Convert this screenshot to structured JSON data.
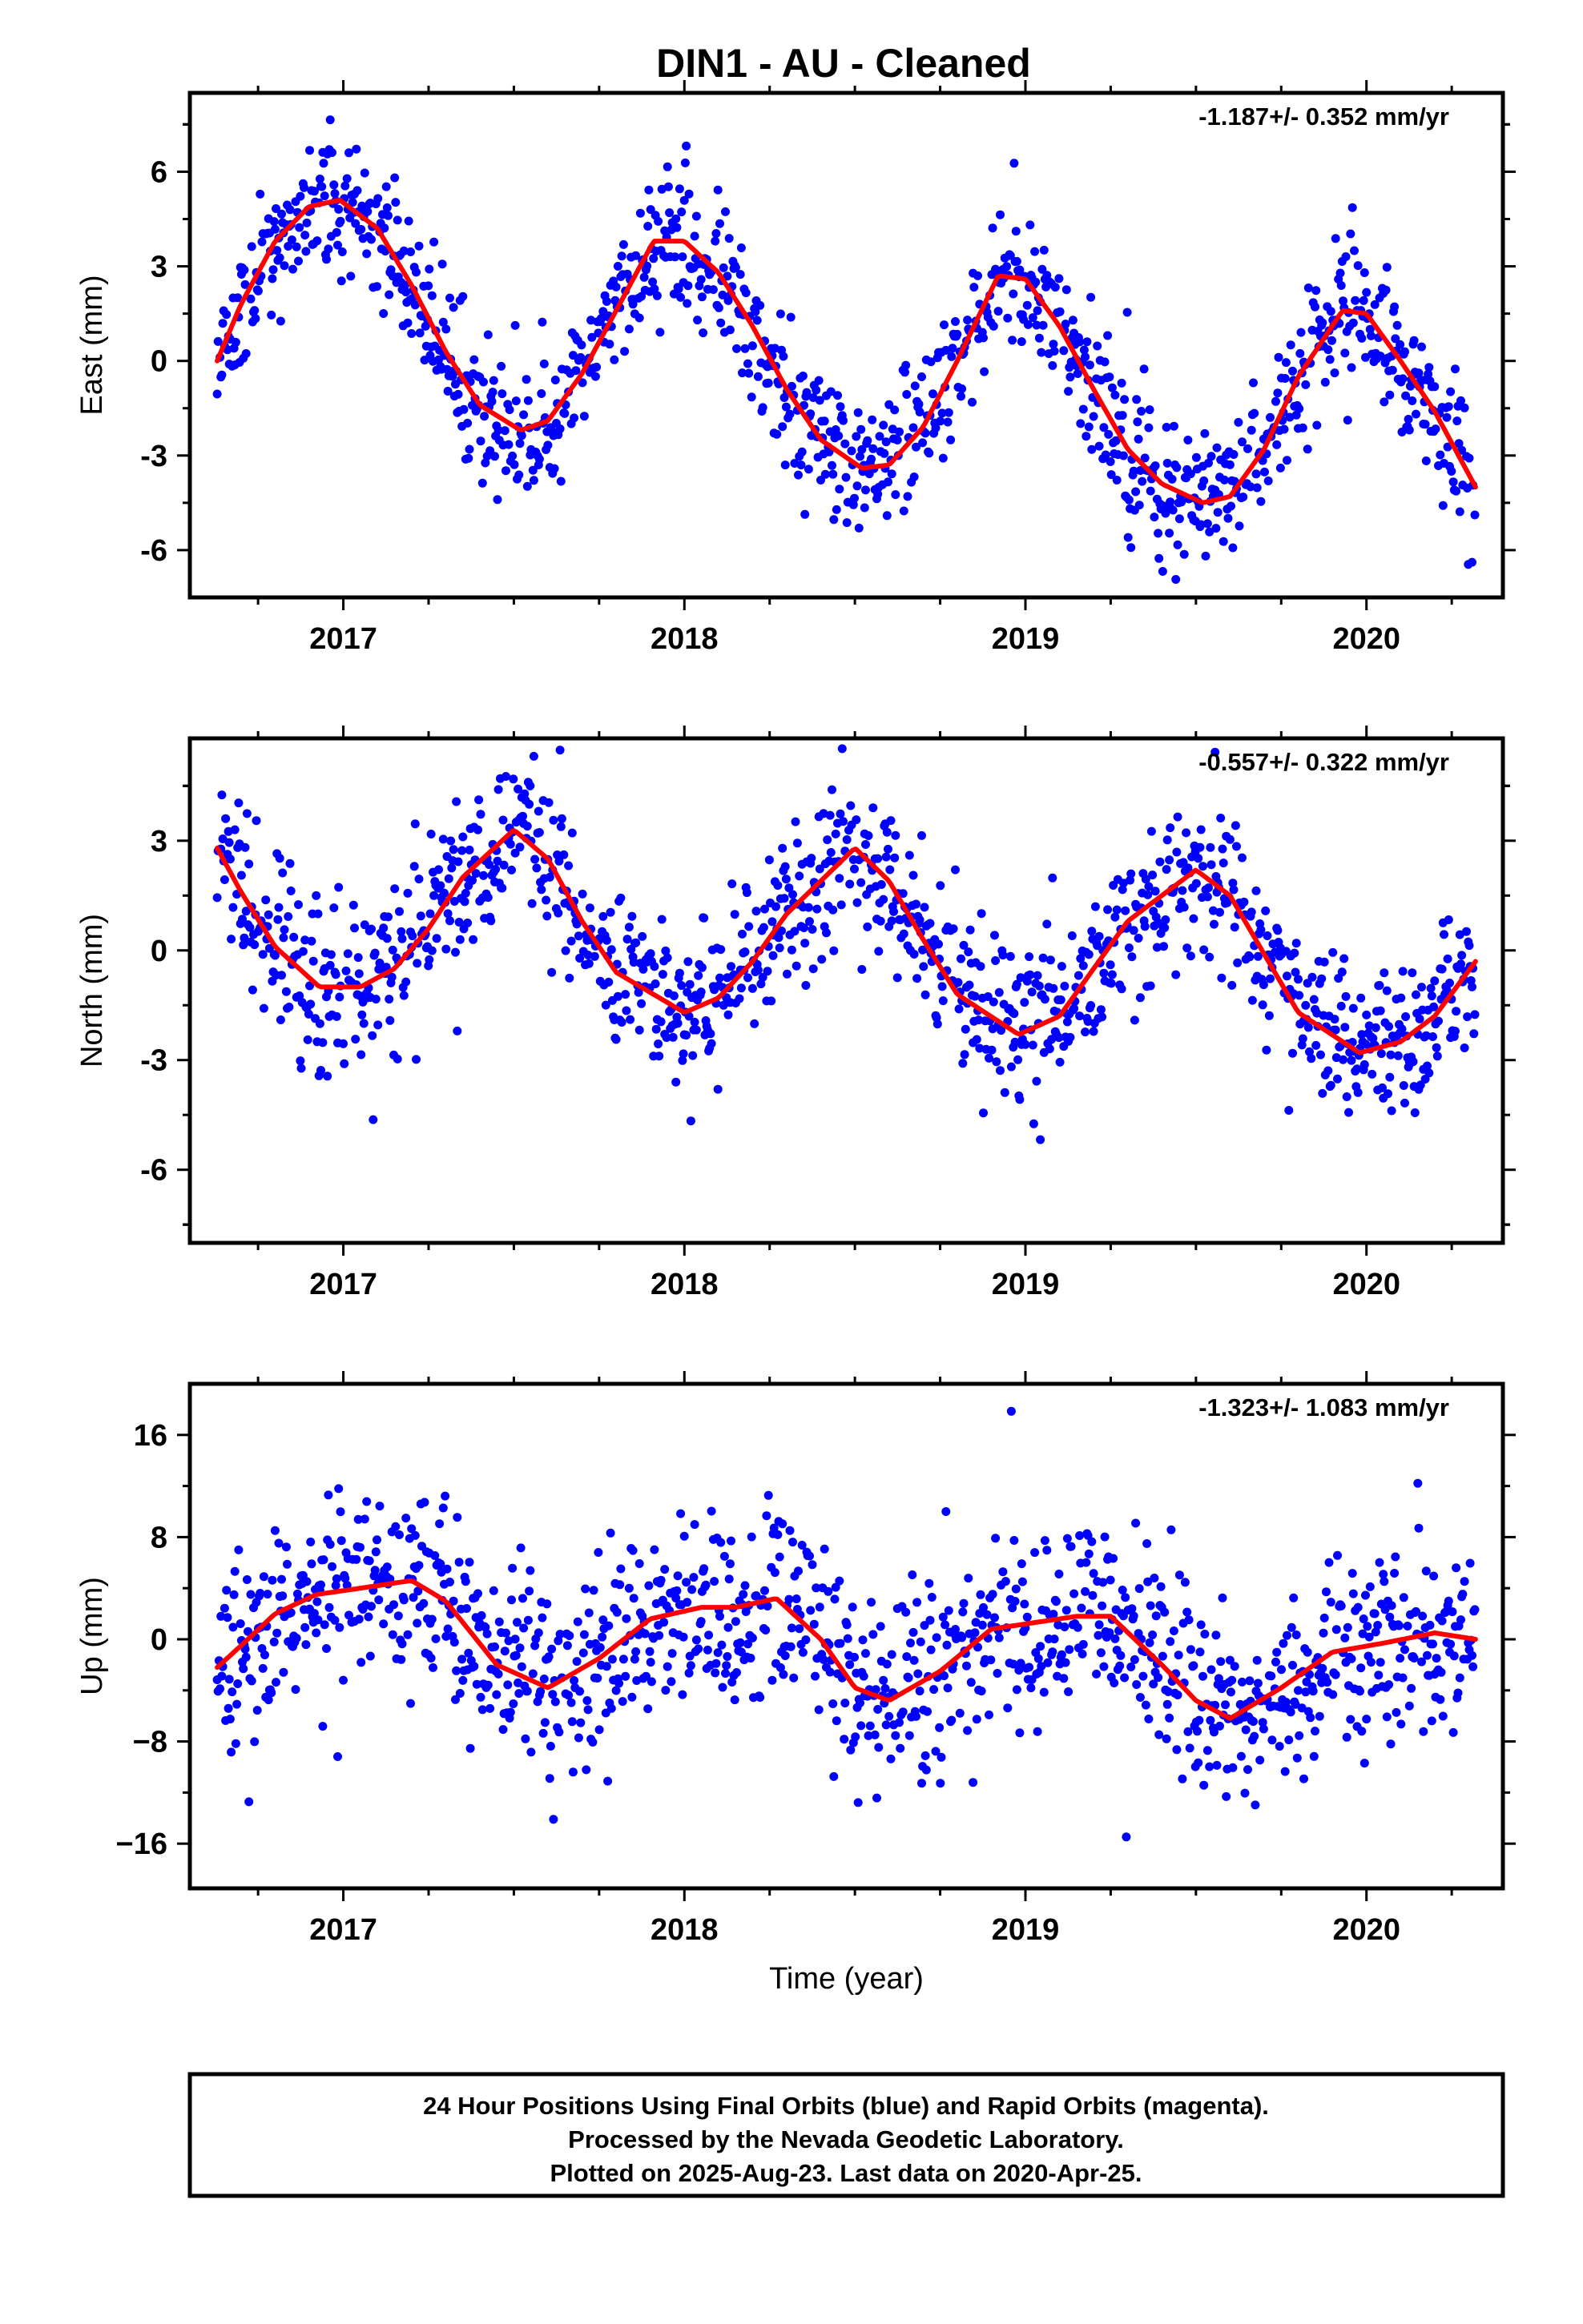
{
  "title": "DIN1  - AU - Cleaned",
  "footer": {
    "lines": [
      "24 Hour Positions Using Final Orbits (blue) and Rapid Orbits (magenta).",
      "Processed by the Nevada Geodetic Laboratory.",
      "Plotted on 2025-Aug-23. Last data on 2020-Apr-25."
    ]
  },
  "colors": {
    "points": "#0000ff",
    "fit": "#ff0000",
    "axes": "#000000"
  },
  "chart_data": [
    {
      "type": "scatter",
      "ylabel": "East (mm)",
      "xlabel": "",
      "rate_text": "-1.187+/- 0.352 mm/yr",
      "xlim": [
        2016.55,
        2020.4
      ],
      "ylim": [
        -7.5,
        8.5
      ],
      "x_ticks": [
        2017,
        2018,
        2019,
        2020
      ],
      "x_tick_labels": [
        "2017",
        "2018",
        "2019",
        "2020"
      ],
      "y_ticks": [
        -6,
        -3,
        0,
        3,
        6
      ],
      "y_tick_labels": [
        "-6",
        "-3",
        "0",
        "3",
        "6"
      ],
      "series": [
        {
          "role": "fit",
          "x": [
            2016.63,
            2016.7,
            2016.8,
            2016.9,
            2016.99,
            2017.1,
            2017.2,
            2017.3,
            2017.4,
            2017.52,
            2017.6,
            2017.7,
            2017.8,
            2017.91,
            2018.0,
            2018.1,
            2018.2,
            2018.3,
            2018.4,
            2018.52,
            2018.6,
            2018.7,
            2018.8,
            2018.92,
            2019.0,
            2019.1,
            2019.2,
            2019.3,
            2019.4,
            2019.52,
            2019.6,
            2019.7,
            2019.8,
            2019.93,
            2020.0,
            2020.1,
            2020.2,
            2020.32
          ],
          "y": [
            0.0,
            1.8,
            3.8,
            4.9,
            5.1,
            4.2,
            2.4,
            0.3,
            -1.4,
            -2.2,
            -1.9,
            -0.4,
            1.6,
            3.8,
            3.8,
            2.8,
            1.1,
            -0.9,
            -2.5,
            -3.4,
            -3.3,
            -2.1,
            0.0,
            2.7,
            2.6,
            1.1,
            -0.9,
            -2.8,
            -3.9,
            -4.5,
            -4.3,
            -2.8,
            -0.5,
            1.6,
            1.5,
            0.0,
            -1.6,
            -4.0
          ]
        },
        {
          "role": "observations",
          "noise": 1.1,
          "spikes": 0.05,
          "seed": 11
        }
      ]
    },
    {
      "type": "scatter",
      "ylabel": "North (mm)",
      "xlabel": "",
      "rate_text": "-0.557+/- 0.322 mm/yr",
      "xlim": [
        2016.55,
        2020.4
      ],
      "ylim": [
        -8.0,
        5.8
      ],
      "x_ticks": [
        2017,
        2018,
        2019,
        2020
      ],
      "x_tick_labels": [
        "2017",
        "2018",
        "2019",
        "2020"
      ],
      "y_ticks": [
        -6,
        -3,
        0,
        3
      ],
      "y_tick_labels": [
        "-6",
        "-3",
        "0",
        "3"
      ],
      "series": [
        {
          "role": "fit",
          "x": [
            2016.63,
            2016.7,
            2016.8,
            2016.93,
            2017.05,
            2017.15,
            2017.25,
            2017.35,
            2017.5,
            2017.6,
            2017.7,
            2017.8,
            2018.0,
            2018.1,
            2018.2,
            2018.3,
            2018.5,
            2018.6,
            2018.7,
            2018.8,
            2018.98,
            2019.1,
            2019.2,
            2019.3,
            2019.5,
            2019.6,
            2019.7,
            2019.8,
            2019.98,
            2020.1,
            2020.2,
            2020.32
          ],
          "y": [
            2.8,
            1.6,
            0.1,
            -1.0,
            -1.0,
            -0.5,
            0.6,
            2.0,
            3.3,
            2.5,
            0.8,
            -0.6,
            -1.7,
            -1.3,
            -0.3,
            1.0,
            2.8,
            1.9,
            0.3,
            -1.2,
            -2.3,
            -1.8,
            -0.5,
            0.8,
            2.2,
            1.5,
            -0.1,
            -1.7,
            -2.8,
            -2.5,
            -1.8,
            -0.3
          ]
        },
        {
          "role": "observations",
          "noise": 1.05,
          "spikes": 0.05,
          "seed": 23
        }
      ]
    },
    {
      "type": "scatter",
      "ylabel": "Up (mm)",
      "xlabel": "Time (year)",
      "rate_text": "-1.323+/- 1.083 mm/yr",
      "xlim": [
        2016.55,
        2020.4
      ],
      "ylim": [
        -19.5,
        20.0
      ],
      "x_ticks": [
        2017,
        2018,
        2019,
        2020
      ],
      "x_tick_labels": [
        "2017",
        "2018",
        "2019",
        "2020"
      ],
      "y_ticks": [
        -16,
        -8,
        0,
        8,
        16
      ],
      "y_tick_labels": [
        "−16",
        "−8",
        "0",
        "8",
        "16"
      ],
      "series": [
        {
          "role": "fit",
          "x": [
            2016.63,
            2016.7,
            2016.8,
            2016.92,
            2017.05,
            2017.2,
            2017.3,
            2017.45,
            2017.6,
            2017.75,
            2017.9,
            2018.05,
            2018.15,
            2018.27,
            2018.4,
            2018.5,
            2018.6,
            2018.75,
            2018.9,
            2019.05,
            2019.15,
            2019.25,
            2019.4,
            2019.5,
            2019.6,
            2019.75,
            2019.9,
            2020.05,
            2020.2,
            2020.32
          ],
          "y": [
            -2.2,
            -0.5,
            2.0,
            3.5,
            4.0,
            4.6,
            3.0,
            -2.0,
            -3.8,
            -1.5,
            1.6,
            2.5,
            2.5,
            3.2,
            0.0,
            -3.8,
            -4.8,
            -2.5,
            0.8,
            1.4,
            1.8,
            1.8,
            -2.0,
            -4.8,
            -6.2,
            -3.8,
            -1.0,
            -0.3,
            0.5,
            0.0
          ]
        },
        {
          "role": "observations",
          "noise": 3.6,
          "spikes": 0.05,
          "seed": 37
        }
      ]
    }
  ]
}
